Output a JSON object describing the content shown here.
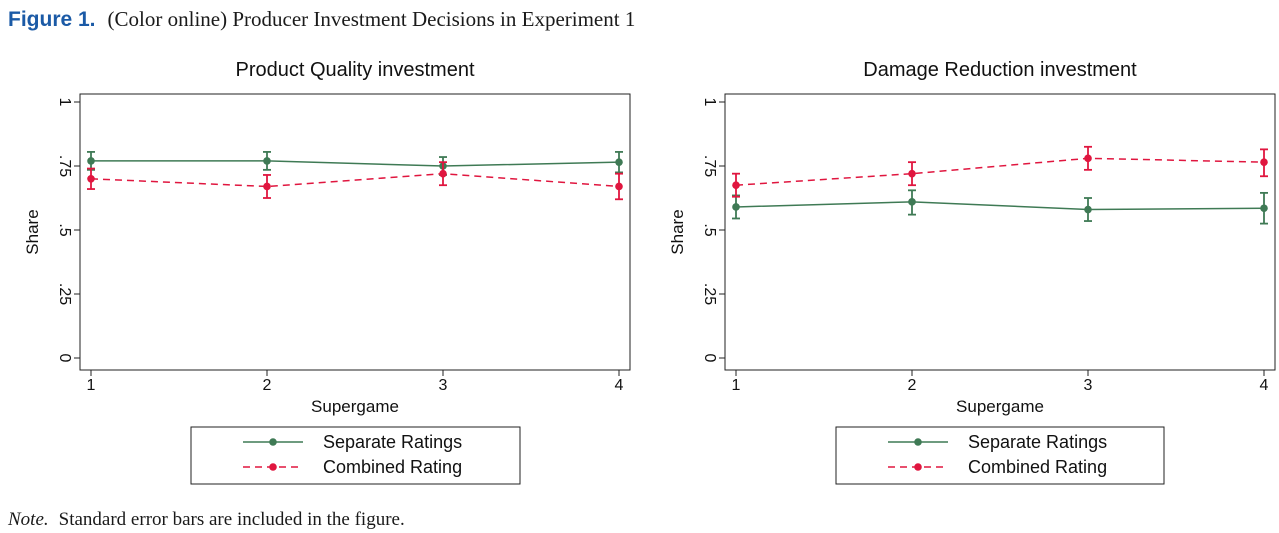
{
  "caption": {
    "label": "Figure 1.",
    "text": "(Color online) Producer Investment Decisions in Experiment 1"
  },
  "note": {
    "label": "Note.",
    "text": "Standard error bars are included in the figure."
  },
  "colors": {
    "separate": "#3f7a55",
    "combined": "#e0163f",
    "caption_label": "#1b5aa6"
  },
  "chart_data": [
    {
      "type": "line",
      "title": "Product Quality investment",
      "xlabel": "Supergame",
      "ylabel": "Share",
      "x": [
        1,
        2,
        3,
        4
      ],
      "x_tick_labels": [
        "1",
        "2",
        "3",
        "4"
      ],
      "y_ticks": [
        0,
        0.25,
        0.5,
        0.75,
        1
      ],
      "y_tick_labels": [
        "0",
        ".25",
        ".5",
        ".75",
        "1"
      ],
      "ylim": [
        0,
        1
      ],
      "grid": false,
      "legend_placement": "bottom",
      "series": [
        {
          "name": "Separate Ratings",
          "style": "solid",
          "color": "#3f7a55",
          "values": [
            0.77,
            0.77,
            0.75,
            0.765
          ],
          "error_low": [
            0.735,
            0.735,
            0.715,
            0.725
          ],
          "error_high": [
            0.805,
            0.805,
            0.785,
            0.805
          ]
        },
        {
          "name": "Combined Rating",
          "style": "dashed",
          "color": "#e0163f",
          "values": [
            0.7,
            0.67,
            0.72,
            0.67
          ],
          "error_low": [
            0.66,
            0.625,
            0.675,
            0.62
          ],
          "error_high": [
            0.74,
            0.715,
            0.765,
            0.72
          ]
        }
      ]
    },
    {
      "type": "line",
      "title": "Damage Reduction investment",
      "xlabel": "Supergame",
      "ylabel": "Share",
      "x": [
        1,
        2,
        3,
        4
      ],
      "x_tick_labels": [
        "1",
        "2",
        "3",
        "4"
      ],
      "y_ticks": [
        0,
        0.25,
        0.5,
        0.75,
        1
      ],
      "y_tick_labels": [
        "0",
        ".25",
        ".5",
        ".75",
        "1"
      ],
      "ylim": [
        0,
        1
      ],
      "grid": false,
      "legend_placement": "bottom",
      "series": [
        {
          "name": "Separate Ratings",
          "style": "solid",
          "color": "#3f7a55",
          "values": [
            0.59,
            0.61,
            0.58,
            0.585
          ],
          "error_low": [
            0.545,
            0.56,
            0.535,
            0.525
          ],
          "error_high": [
            0.635,
            0.655,
            0.625,
            0.645
          ]
        },
        {
          "name": "Combined Rating",
          "style": "dashed",
          "color": "#e0163f",
          "values": [
            0.675,
            0.72,
            0.78,
            0.765
          ],
          "error_low": [
            0.63,
            0.675,
            0.735,
            0.71
          ],
          "error_high": [
            0.72,
            0.765,
            0.825,
            0.815
          ]
        }
      ]
    }
  ]
}
